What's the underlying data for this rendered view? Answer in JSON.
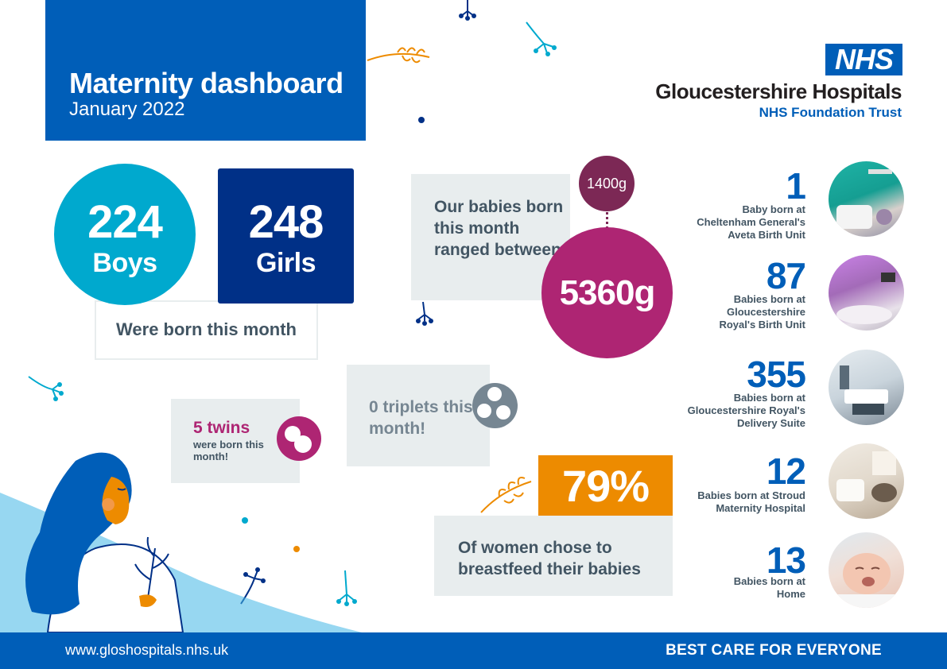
{
  "header": {
    "title": "Maternity dashboard",
    "subtitle": "January 2022"
  },
  "logo": {
    "nhs": "NHS",
    "trust_name": "Gloucestershire Hospitals",
    "trust_sub": "NHS Foundation Trust"
  },
  "births": {
    "boys_count": "224",
    "boys_label": "Boys",
    "girls_count": "248",
    "girls_label": "Girls",
    "caption": "Were born this month"
  },
  "weights": {
    "text": "Our babies born this month ranged between:",
    "min": "1400g",
    "max": "5360g"
  },
  "multiples": {
    "twins_count": "5 twins",
    "twins_text": "were born this month!",
    "triplets_text": "0 triplets this month!"
  },
  "breastfeeding": {
    "percent": "79%",
    "text": "Of women chose to breastfeed their babies"
  },
  "sites": [
    {
      "count": "1",
      "desc": "Baby born at Cheltenham General's Aveta Birth Unit"
    },
    {
      "count": "87",
      "desc": "Babies born at Gloucestershire Royal's Birth Unit"
    },
    {
      "count": "355",
      "desc": "Babies born at Gloucestershire Royal's Delivery Suite"
    },
    {
      "count": "12",
      "desc": "Babies born at Stroud Maternity Hospital"
    },
    {
      "count": "13",
      "desc": "Babies born at Home"
    }
  ],
  "footer": {
    "url": "www.gloshospitals.nhs.uk",
    "tagline": "BEST CARE FOR EVERYONE"
  },
  "colors": {
    "nhs_blue": "#005eb8",
    "light_blue": "#00a9ce",
    "dark_blue": "#003087",
    "pink": "#ae2573",
    "plum": "#7c2855",
    "orange": "#ed8b00",
    "pale_grey": "#e8edee"
  }
}
